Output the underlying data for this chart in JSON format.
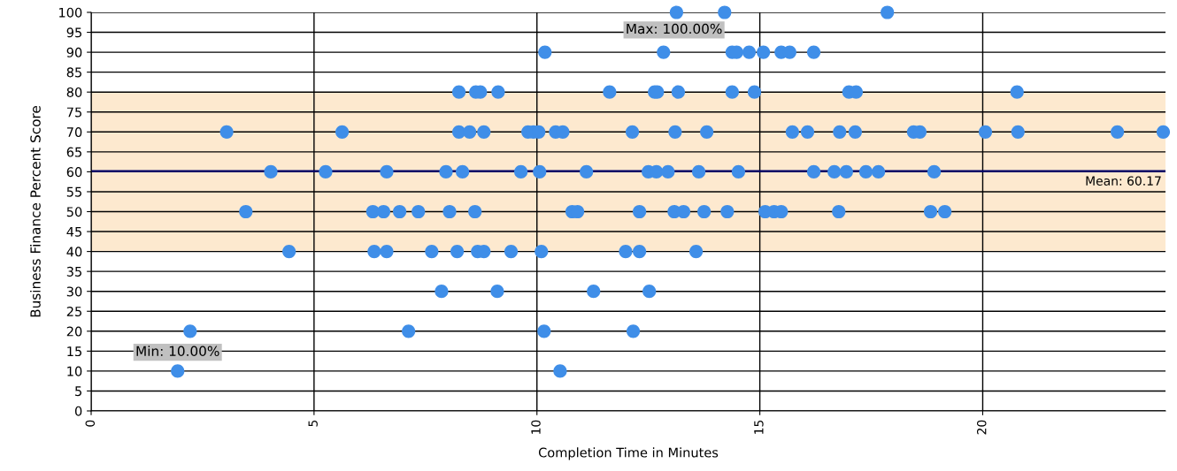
{
  "chart_data": {
    "type": "scatter",
    "xlabel": "Completion Time in Minutes",
    "ylabel": "Business Finance Percent Score",
    "xlim": [
      0,
      24.1
    ],
    "xticks": [
      0,
      5,
      10,
      15,
      20
    ],
    "ylim": [
      0,
      100
    ],
    "yticks": [
      0,
      5,
      10,
      15,
      20,
      25,
      30,
      35,
      40,
      45,
      50,
      55,
      60,
      65,
      70,
      75,
      80,
      85,
      90,
      95,
      100
    ],
    "grid": true,
    "marker": "circle",
    "legend": false,
    "series": [
      {
        "color": "#3f8ee8",
        "x": [
          13.13,
          14.21,
          17.86,
          10.18,
          12.84,
          14.38,
          14.48,
          14.76,
          15.08,
          15.48,
          15.67,
          16.21,
          8.25,
          8.63,
          8.73,
          9.13,
          11.63,
          12.64,
          12.7,
          13.17,
          14.38,
          14.88,
          17.0,
          17.16,
          20.77,
          3.04,
          5.63,
          8.25,
          8.49,
          8.81,
          9.8,
          9.92,
          10.04,
          10.42,
          10.58,
          12.14,
          13.1,
          13.81,
          15.73,
          16.07,
          16.79,
          17.14,
          18.45,
          18.59,
          20.06,
          20.79,
          23.02,
          24.05,
          4.03,
          5.26,
          6.63,
          7.96,
          8.33,
          9.64,
          10.06,
          11.11,
          12.5,
          12.68,
          12.94,
          13.63,
          14.52,
          16.21,
          16.67,
          16.94,
          17.38,
          17.66,
          18.91,
          3.47,
          6.32,
          6.56,
          6.92,
          7.34,
          8.04,
          8.61,
          10.79,
          10.91,
          12.3,
          13.08,
          13.29,
          13.75,
          14.27,
          15.12,
          15.32,
          15.48,
          16.77,
          18.83,
          19.15,
          4.44,
          6.35,
          6.63,
          7.64,
          8.21,
          8.67,
          8.81,
          9.42,
          10.1,
          11.99,
          12.3,
          13.57,
          7.86,
          9.11,
          11.27,
          12.52,
          2.22,
          7.12,
          10.16,
          12.16,
          1.94,
          10.52
        ],
        "values": [
          100,
          100,
          100,
          90,
          90,
          90,
          90,
          90,
          90,
          90,
          90,
          90,
          80,
          80,
          80,
          80,
          80,
          80,
          80,
          80,
          80,
          80,
          80,
          80,
          80,
          70,
          70,
          70,
          70,
          70,
          70,
          70,
          70,
          70,
          70,
          70,
          70,
          70,
          70,
          70,
          70,
          70,
          70,
          70,
          70,
          70,
          70,
          70,
          60,
          60,
          60,
          60,
          60,
          60,
          60,
          60,
          60,
          60,
          60,
          60,
          60,
          60,
          60,
          60,
          60,
          60,
          60,
          50,
          50,
          50,
          50,
          50,
          50,
          50,
          50,
          50,
          50,
          50,
          50,
          50,
          50,
          50,
          50,
          50,
          50,
          50,
          50,
          40,
          40,
          40,
          40,
          40,
          40,
          40,
          40,
          40,
          40,
          40,
          40,
          30,
          30,
          30,
          30,
          20,
          20,
          20,
          20,
          10,
          10
        ]
      }
    ],
    "ref_lines": [
      {
        "axis": "y",
        "value": 60.17,
        "label": "Mean: 60.17",
        "color": "#000066",
        "line_style": "solid"
      }
    ],
    "bands": [
      {
        "axis": "y",
        "from": 40,
        "to": 80,
        "color": "#fde9cf"
      }
    ],
    "annotations": [
      {
        "text": "Max: 100.00%",
        "x": 13.13,
        "y": 100
      },
      {
        "text": "Min: 10.00%",
        "x": 1.94,
        "y": 10
      }
    ]
  }
}
